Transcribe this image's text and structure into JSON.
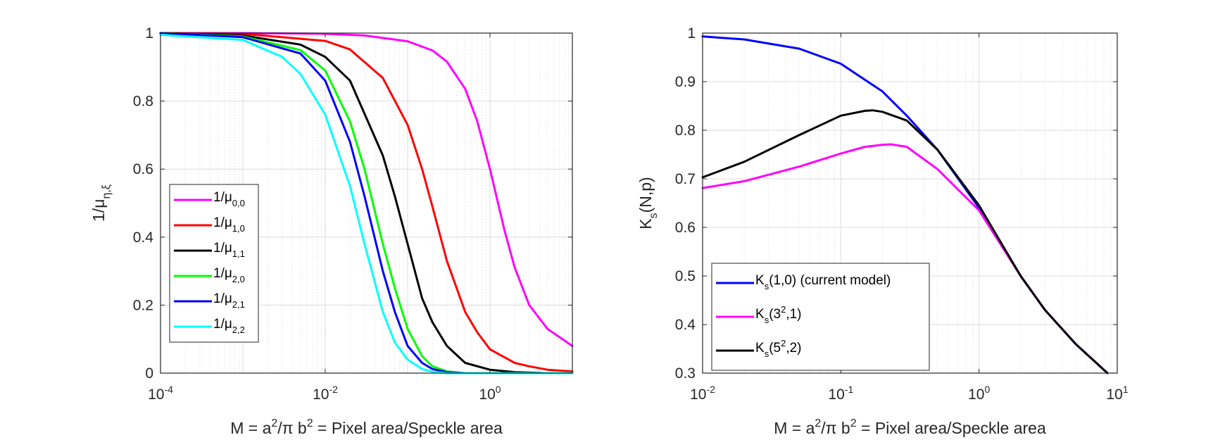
{
  "chart_data": [
    {
      "type": "line",
      "xscale": "log",
      "xlim": [
        0.0001,
        10
      ],
      "ylim": [
        0,
        1
      ],
      "grid": true,
      "minor_grid_x": true,
      "legend_placement": "lower-left",
      "xticks": [
        {
          "base": "10",
          "exp": "-4",
          "value": 0.0001
        },
        {
          "base": "10",
          "exp": "-2",
          "value": 0.01
        },
        {
          "base": "10",
          "exp": "0",
          "value": 1
        }
      ],
      "yticks": [
        {
          "label": "0",
          "value": 0
        },
        {
          "label": "0.2",
          "value": 0.2
        },
        {
          "label": "0.4",
          "value": 0.4
        },
        {
          "label": "0.6",
          "value": 0.6
        },
        {
          "label": "0.8",
          "value": 0.8
        },
        {
          "label": "1",
          "value": 1
        }
      ],
      "xlabel": {
        "p1": "M = a",
        "sup1": "2",
        "p2": "/π b",
        "sup2": "2",
        "p3": " = Pixel area/Speckle area"
      },
      "ylabel": {
        "main": "1/μ",
        "sub": "η,ξ"
      },
      "series": [
        {
          "name": {
            "main": "1/μ",
            "sub": "0,0"
          },
          "color": "#ff00ff",
          "x": [
            0.0001,
            0.001,
            0.01,
            0.03,
            0.1,
            0.2,
            0.3,
            0.5,
            0.7,
            1,
            1.5,
            2,
            3,
            5,
            10
          ],
          "y": [
            1.0,
            1.0,
            0.998,
            0.993,
            0.976,
            0.949,
            0.916,
            0.836,
            0.741,
            0.6,
            0.42,
            0.31,
            0.2,
            0.13,
            0.08
          ]
        },
        {
          "name": {
            "main": "1/μ",
            "sub": "1,0"
          },
          "color": "#ff0000",
          "x": [
            0.0001,
            0.001,
            0.01,
            0.02,
            0.05,
            0.1,
            0.15,
            0.2,
            0.3,
            0.5,
            0.7,
            1,
            2,
            3,
            5,
            10
          ],
          "y": [
            1.0,
            0.998,
            0.977,
            0.952,
            0.868,
            0.73,
            0.6,
            0.49,
            0.33,
            0.18,
            0.12,
            0.07,
            0.03,
            0.02,
            0.01,
            0.005
          ]
        },
        {
          "name": {
            "main": "1/μ",
            "sub": "1,1"
          },
          "color": "#000000",
          "x": [
            0.0001,
            0.001,
            0.005,
            0.01,
            0.02,
            0.05,
            0.07,
            0.1,
            0.15,
            0.2,
            0.3,
            0.5,
            1,
            2,
            5,
            10
          ],
          "y": [
            1.0,
            0.993,
            0.966,
            0.93,
            0.86,
            0.64,
            0.52,
            0.38,
            0.22,
            0.15,
            0.08,
            0.03,
            0.01,
            0.003,
            0.0,
            0.0
          ]
        },
        {
          "name": {
            "main": "1/μ",
            "sub": "2,0"
          },
          "color": "#00ff00",
          "x": [
            0.0001,
            0.001,
            0.005,
            0.01,
            0.02,
            0.03,
            0.05,
            0.07,
            0.1,
            0.15,
            0.2,
            0.3,
            0.5,
            1,
            10
          ],
          "y": [
            1.0,
            0.99,
            0.95,
            0.89,
            0.74,
            0.6,
            0.38,
            0.25,
            0.13,
            0.05,
            0.02,
            0.005,
            0.0,
            0.0,
            0.0
          ]
        },
        {
          "name": {
            "main": "1/μ",
            "sub": "2,1"
          },
          "color": "#0000ff",
          "x": [
            0.0001,
            0.001,
            0.005,
            0.01,
            0.02,
            0.03,
            0.05,
            0.07,
            0.1,
            0.15,
            0.2,
            0.3,
            0.5,
            1,
            10
          ],
          "y": [
            1.0,
            0.988,
            0.94,
            0.86,
            0.68,
            0.52,
            0.3,
            0.18,
            0.08,
            0.03,
            0.012,
            0.003,
            0.0,
            0.0,
            0.0
          ]
        },
        {
          "name": {
            "main": "1/μ",
            "sub": "2,2"
          },
          "color": "#00ffff",
          "x": [
            0.0001,
            0.001,
            0.003,
            0.005,
            0.01,
            0.02,
            0.03,
            0.05,
            0.07,
            0.1,
            0.15,
            0.2,
            0.3,
            1,
            10
          ],
          "y": [
            0.995,
            0.98,
            0.93,
            0.88,
            0.76,
            0.55,
            0.38,
            0.18,
            0.09,
            0.04,
            0.012,
            0.004,
            0.0,
            0.0,
            0.0
          ]
        }
      ]
    },
    {
      "type": "line",
      "xscale": "log",
      "xlim": [
        0.01,
        10
      ],
      "ylim": [
        0.3,
        1
      ],
      "grid": true,
      "minor_grid_x": true,
      "legend_placement": "lower-left",
      "xticks": [
        {
          "base": "10",
          "exp": "-2",
          "value": 0.01
        },
        {
          "base": "10",
          "exp": "-1",
          "value": 0.1
        },
        {
          "base": "10",
          "exp": "0",
          "value": 1
        },
        {
          "base": "10",
          "exp": "1",
          "value": 10
        }
      ],
      "yticks": [
        {
          "label": "0.3",
          "value": 0.3
        },
        {
          "label": "0.4",
          "value": 0.4
        },
        {
          "label": "0.5",
          "value": 0.5
        },
        {
          "label": "0.6",
          "value": 0.6
        },
        {
          "label": "0.7",
          "value": 0.7
        },
        {
          "label": "0.8",
          "value": 0.8
        },
        {
          "label": "0.9",
          "value": 0.9
        },
        {
          "label": "1",
          "value": 1
        }
      ],
      "xlabel": {
        "p1": "M = a",
        "sup1": "2",
        "p2": "/π b",
        "sup2": "2",
        "p3": " = Pixel area/Speckle area"
      },
      "ylabel": {
        "main": "K",
        "sub": "s",
        "rest": "(N,p)"
      },
      "series": [
        {
          "name": {
            "main": "K",
            "sub": "s",
            "rest": "(1,0) (current model)"
          },
          "color": "#0000ff",
          "x": [
            0.01,
            0.02,
            0.05,
            0.1,
            0.2,
            0.3,
            0.5,
            1,
            2,
            3,
            5,
            8.5
          ],
          "y": [
            0.993,
            0.987,
            0.968,
            0.937,
            0.88,
            0.83,
            0.76,
            0.64,
            0.5,
            0.43,
            0.36,
            0.3
          ]
        },
        {
          "name": {
            "main": "K",
            "sub": "s",
            "rest": "(3",
            "sup": "2",
            "rest2": ",1)"
          },
          "color": "#ff00ff",
          "x": [
            0.01,
            0.02,
            0.05,
            0.1,
            0.15,
            0.2,
            0.23,
            0.3,
            0.5,
            1,
            2,
            3,
            5,
            8.5
          ],
          "y": [
            0.681,
            0.695,
            0.725,
            0.752,
            0.766,
            0.77,
            0.771,
            0.766,
            0.72,
            0.635,
            0.5,
            0.43,
            0.36,
            0.3
          ]
        },
        {
          "name": {
            "main": "K",
            "sub": "s",
            "rest": "(5",
            "sup": "2",
            "rest2": ",2)"
          },
          "color": "#000000",
          "x": [
            0.01,
            0.02,
            0.05,
            0.1,
            0.15,
            0.17,
            0.2,
            0.3,
            0.5,
            1,
            2,
            3,
            5,
            8.5
          ],
          "y": [
            0.703,
            0.735,
            0.79,
            0.83,
            0.84,
            0.841,
            0.838,
            0.82,
            0.76,
            0.645,
            0.5,
            0.43,
            0.36,
            0.3
          ]
        }
      ]
    }
  ]
}
